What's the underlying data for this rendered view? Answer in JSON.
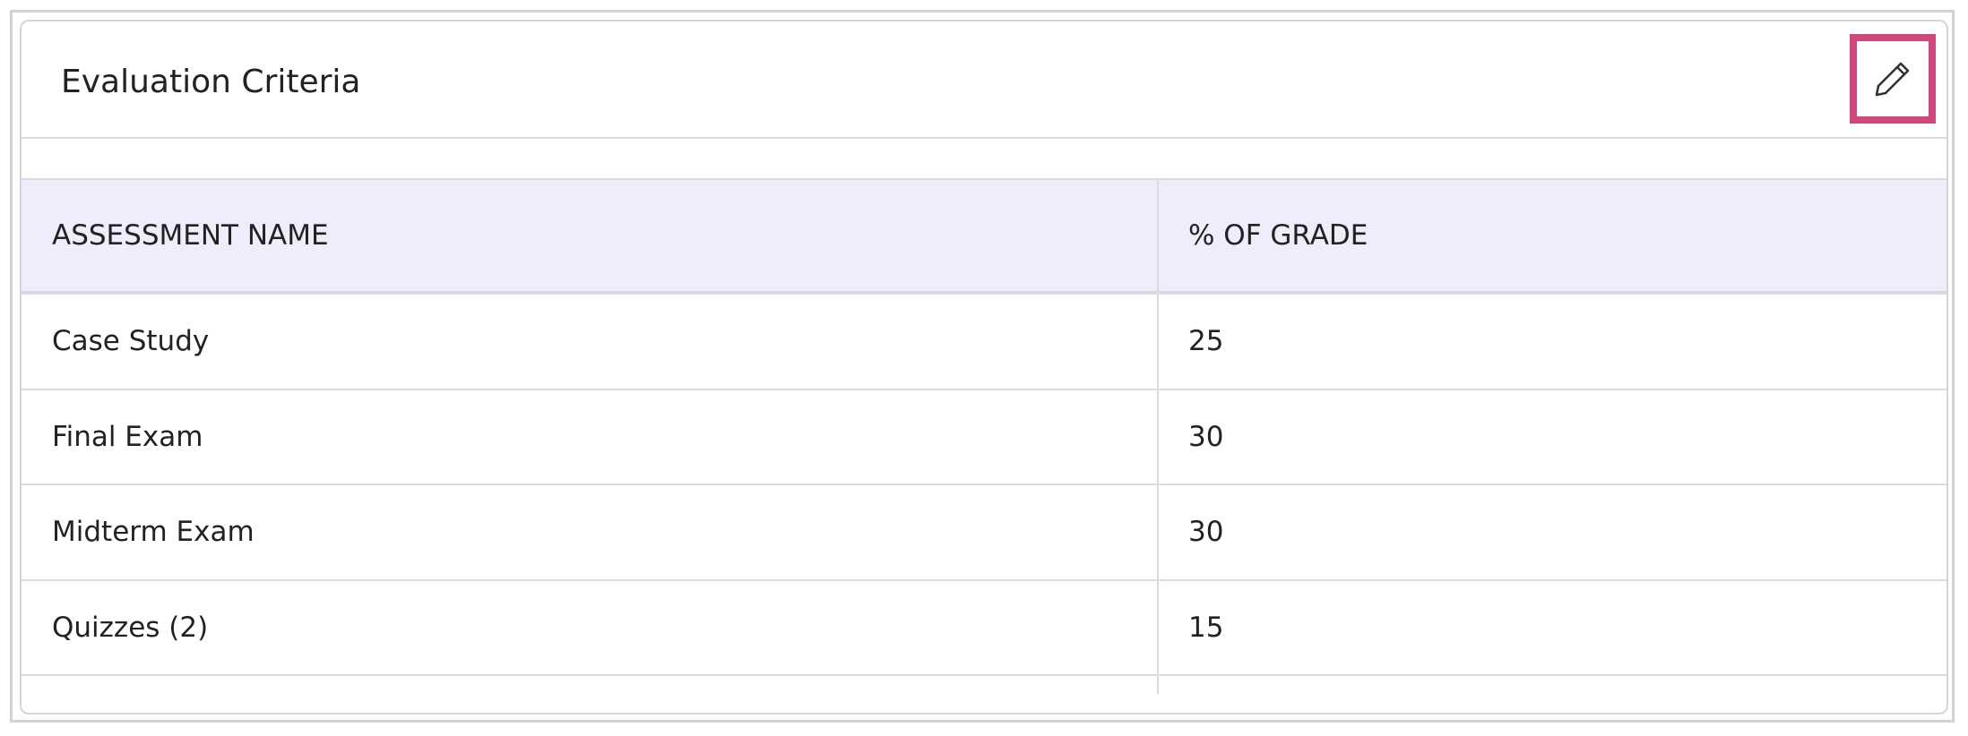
{
  "header": {
    "title": "Evaluation Criteria"
  },
  "table": {
    "columns": [
      "ASSESSMENT NAME",
      "% OF GRADE"
    ],
    "rows": [
      [
        "Case Study",
        25
      ],
      [
        "Final Exam",
        30
      ],
      [
        "Midterm Exam",
        30
      ],
      [
        "Quizzes (2)",
        15
      ]
    ]
  }
}
